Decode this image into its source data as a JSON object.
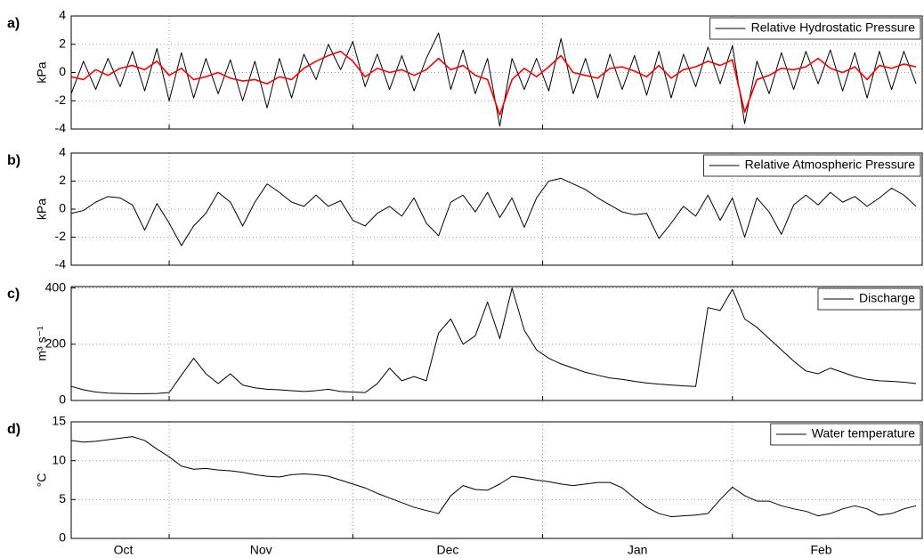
{
  "chart_data": [
    {
      "type": "line",
      "panel_label": "a)",
      "ylabel": "kPa",
      "ylim": [
        -4,
        4
      ],
      "yticks": [
        -4,
        -2,
        0,
        2,
        4
      ],
      "xlim": [
        0,
        139
      ],
      "xgrid": [
        16,
        46,
        77,
        108
      ],
      "x": [
        0,
        2,
        4,
        6,
        8,
        10,
        12,
        14,
        16,
        18,
        20,
        22,
        24,
        26,
        28,
        30,
        32,
        34,
        36,
        38,
        40,
        42,
        44,
        46,
        48,
        50,
        52,
        54,
        56,
        58,
        60,
        62,
        64,
        66,
        68,
        70,
        72,
        74,
        76,
        78,
        80,
        82,
        84,
        86,
        88,
        90,
        92,
        94,
        96,
        98,
        100,
        102,
        104,
        106,
        108,
        110,
        112,
        114,
        116,
        118,
        120,
        122,
        124,
        126,
        128,
        130,
        132,
        134,
        136,
        138
      ],
      "series": [
        {
          "name": "Relative Hydrostatic Pressure",
          "color": "#000000",
          "values": [
            -1.5,
            0.8,
            -1.2,
            1.0,
            -1.0,
            1.5,
            -1.3,
            1.7,
            -2.0,
            1.4,
            -1.8,
            1.0,
            -1.5,
            0.9,
            -2.0,
            0.8,
            -2.5,
            1.0,
            -1.8,
            1.3,
            -0.5,
            2.0,
            0.2,
            2.2,
            -1.0,
            1.3,
            -1.2,
            1.2,
            -1.3,
            1.0,
            2.8,
            -1.2,
            1.6,
            -1.5,
            1.0,
            -3.8,
            1.0,
            -1.2,
            1.0,
            -1.3,
            2.4,
            -1.5,
            1.0,
            -1.8,
            1.3,
            -1.2,
            1.2,
            -1.6,
            1.5,
            -1.8,
            1.3,
            -1.0,
            1.8,
            -0.8,
            1.9,
            -3.6,
            0.8,
            -1.5,
            1.4,
            -1.2,
            1.5,
            -0.8,
            1.6,
            -1.3,
            1.4,
            -1.8,
            1.5,
            -1.2,
            1.5,
            -0.8
          ]
        },
        {
          "color": "#ff0000",
          "values": [
            -0.3,
            -0.5,
            0.2,
            -0.2,
            0.3,
            0.5,
            0.2,
            0.8,
            -0.2,
            0.3,
            -0.5,
            -0.3,
            0,
            -0.4,
            -0.6,
            -0.5,
            -0.8,
            -0.3,
            -0.5,
            0.3,
            0.8,
            1.2,
            1.5,
            0.8,
            -0.3,
            0.3,
            0,
            0.2,
            -0.2,
            0.2,
            1.0,
            0.2,
            0.5,
            -0.2,
            -0.5,
            -3.0,
            -0.5,
            0.3,
            -0.3,
            0.4,
            1.2,
            0,
            -0.2,
            -0.4,
            0.3,
            0.4,
            0.1,
            -0.3,
            0.5,
            -0.4,
            0.2,
            0.4,
            0.8,
            0.5,
            0.9,
            -2.8,
            -0.5,
            -0.2,
            0.3,
            0.2,
            0.4,
            1.0,
            0.3,
            0,
            0.4,
            -0.5,
            0.5,
            0.3,
            0.6,
            0.4
          ]
        }
      ]
    },
    {
      "type": "line",
      "panel_label": "b)",
      "ylabel": "kPa",
      "ylim": [
        -4,
        4
      ],
      "yticks": [
        -4,
        -2,
        0,
        2,
        4
      ],
      "xlim": [
        0,
        139
      ],
      "xgrid": [
        16,
        46,
        77,
        108
      ],
      "x": [
        0,
        2,
        4,
        6,
        8,
        10,
        12,
        14,
        16,
        18,
        20,
        22,
        24,
        26,
        28,
        30,
        32,
        34,
        36,
        38,
        40,
        42,
        44,
        46,
        48,
        50,
        52,
        54,
        56,
        58,
        60,
        62,
        64,
        66,
        68,
        70,
        72,
        74,
        76,
        78,
        80,
        82,
        84,
        86,
        88,
        90,
        92,
        94,
        96,
        98,
        100,
        102,
        104,
        106,
        108,
        110,
        112,
        114,
        116,
        118,
        120,
        122,
        124,
        126,
        128,
        130,
        132,
        134,
        136,
        138
      ],
      "series": [
        {
          "name": "Relative Atmospheric Pressure",
          "color": "#000000",
          "values": [
            -0.3,
            -0.1,
            0.5,
            0.9,
            0.8,
            0.3,
            -1.5,
            0.4,
            -1.0,
            -2.6,
            -1.2,
            -0.3,
            1.2,
            0.5,
            -1.2,
            0.5,
            1.8,
            1.2,
            0.5,
            0.2,
            1.0,
            0.2,
            0.6,
            -0.8,
            -1.2,
            -0.3,
            0.2,
            -0.5,
            0.8,
            -1.0,
            -1.9,
            0.5,
            1.0,
            -0.2,
            1.2,
            -0.6,
            0.8,
            -1.3,
            0.8,
            2.0,
            2.2,
            1.8,
            1.4,
            0.8,
            0.3,
            -0.2,
            -0.4,
            -0.3,
            -2.1,
            -1.0,
            0.2,
            -0.5,
            1.0,
            -0.8,
            0.8,
            -2.0,
            0.8,
            -0.2,
            -1.8,
            0.3,
            1.0,
            0.3,
            1.2,
            0.5,
            0.9,
            0.2,
            0.8,
            1.5,
            1.0,
            0.2
          ]
        }
      ]
    },
    {
      "type": "line",
      "panel_label": "c)",
      "ylabel": "m³ s⁻¹",
      "ylim": [
        0,
        405
      ],
      "yticks": [
        0,
        200,
        400
      ],
      "xlim": [
        0,
        139
      ],
      "xgrid": [
        16,
        46,
        77,
        108
      ],
      "x": [
        0,
        2,
        4,
        6,
        8,
        10,
        12,
        14,
        16,
        18,
        20,
        22,
        24,
        26,
        28,
        30,
        32,
        34,
        36,
        38,
        40,
        42,
        44,
        46,
        48,
        50,
        52,
        54,
        56,
        58,
        60,
        62,
        64,
        66,
        68,
        70,
        72,
        74,
        76,
        78,
        80,
        82,
        84,
        86,
        88,
        90,
        92,
        94,
        96,
        98,
        100,
        102,
        104,
        106,
        108,
        110,
        112,
        114,
        116,
        118,
        120,
        122,
        124,
        126,
        128,
        130,
        132,
        134,
        136,
        138
      ],
      "series": [
        {
          "name": "Discharge",
          "color": "#000000",
          "values": [
            50,
            38,
            30,
            26,
            25,
            24,
            24,
            25,
            28,
            90,
            150,
            95,
            60,
            95,
            55,
            45,
            40,
            38,
            35,
            32,
            35,
            40,
            32,
            30,
            28,
            60,
            115,
            70,
            85,
            70,
            240,
            290,
            200,
            230,
            350,
            220,
            400,
            250,
            180,
            150,
            130,
            115,
            100,
            90,
            80,
            75,
            68,
            62,
            58,
            55,
            52,
            50,
            330,
            320,
            395,
            290,
            260,
            220,
            180,
            140,
            105,
            95,
            115,
            100,
            85,
            75,
            70,
            68,
            65,
            60
          ]
        }
      ]
    },
    {
      "type": "line",
      "panel_label": "d)",
      "ylabel": "°C",
      "ylim": [
        0,
        15
      ],
      "yticks": [
        0,
        5,
        10,
        15
      ],
      "xlim": [
        0,
        139
      ],
      "xgrid": [
        16,
        46,
        77,
        108
      ],
      "x": [
        0,
        2,
        4,
        6,
        8,
        10,
        12,
        14,
        16,
        18,
        20,
        22,
        24,
        26,
        28,
        30,
        32,
        34,
        36,
        38,
        40,
        42,
        44,
        46,
        48,
        50,
        52,
        54,
        56,
        58,
        60,
        62,
        64,
        66,
        68,
        70,
        72,
        74,
        76,
        78,
        80,
        82,
        84,
        86,
        88,
        90,
        92,
        94,
        96,
        98,
        100,
        102,
        104,
        106,
        108,
        110,
        112,
        114,
        116,
        118,
        120,
        122,
        124,
        126,
        128,
        130,
        132,
        134,
        136,
        138
      ],
      "xticks": [
        {
          "value": 8.5,
          "label": "Oct"
        },
        {
          "value": 31,
          "label": "Nov"
        },
        {
          "value": 61.5,
          "label": "Dec"
        },
        {
          "value": 92.5,
          "label": "Jan"
        },
        {
          "value": 122.5,
          "label": "Feb"
        }
      ],
      "series": [
        {
          "name": "Water temperature",
          "color": "#000000",
          "values": [
            12.6,
            12.4,
            12.5,
            12.7,
            12.9,
            13.1,
            12.6,
            11.5,
            10.5,
            9.3,
            8.9,
            9.0,
            8.8,
            8.7,
            8.5,
            8.2,
            8.0,
            7.9,
            8.2,
            8.3,
            8.2,
            8.0,
            7.5,
            7.0,
            6.5,
            5.8,
            5.2,
            4.6,
            4.0,
            3.6,
            3.2,
            5.5,
            6.8,
            6.3,
            6.2,
            7.0,
            8.0,
            7.8,
            7.5,
            7.3,
            7.0,
            6.8,
            7.0,
            7.2,
            7.2,
            6.5,
            5.2,
            4.0,
            3.2,
            2.8,
            2.9,
            3.0,
            3.2,
            5.0,
            6.6,
            5.5,
            4.8,
            4.8,
            4.2,
            3.8,
            3.5,
            2.9,
            3.2,
            3.8,
            4.2,
            3.8,
            3.0,
            3.2,
            3.8,
            4.2
          ]
        }
      ]
    }
  ]
}
